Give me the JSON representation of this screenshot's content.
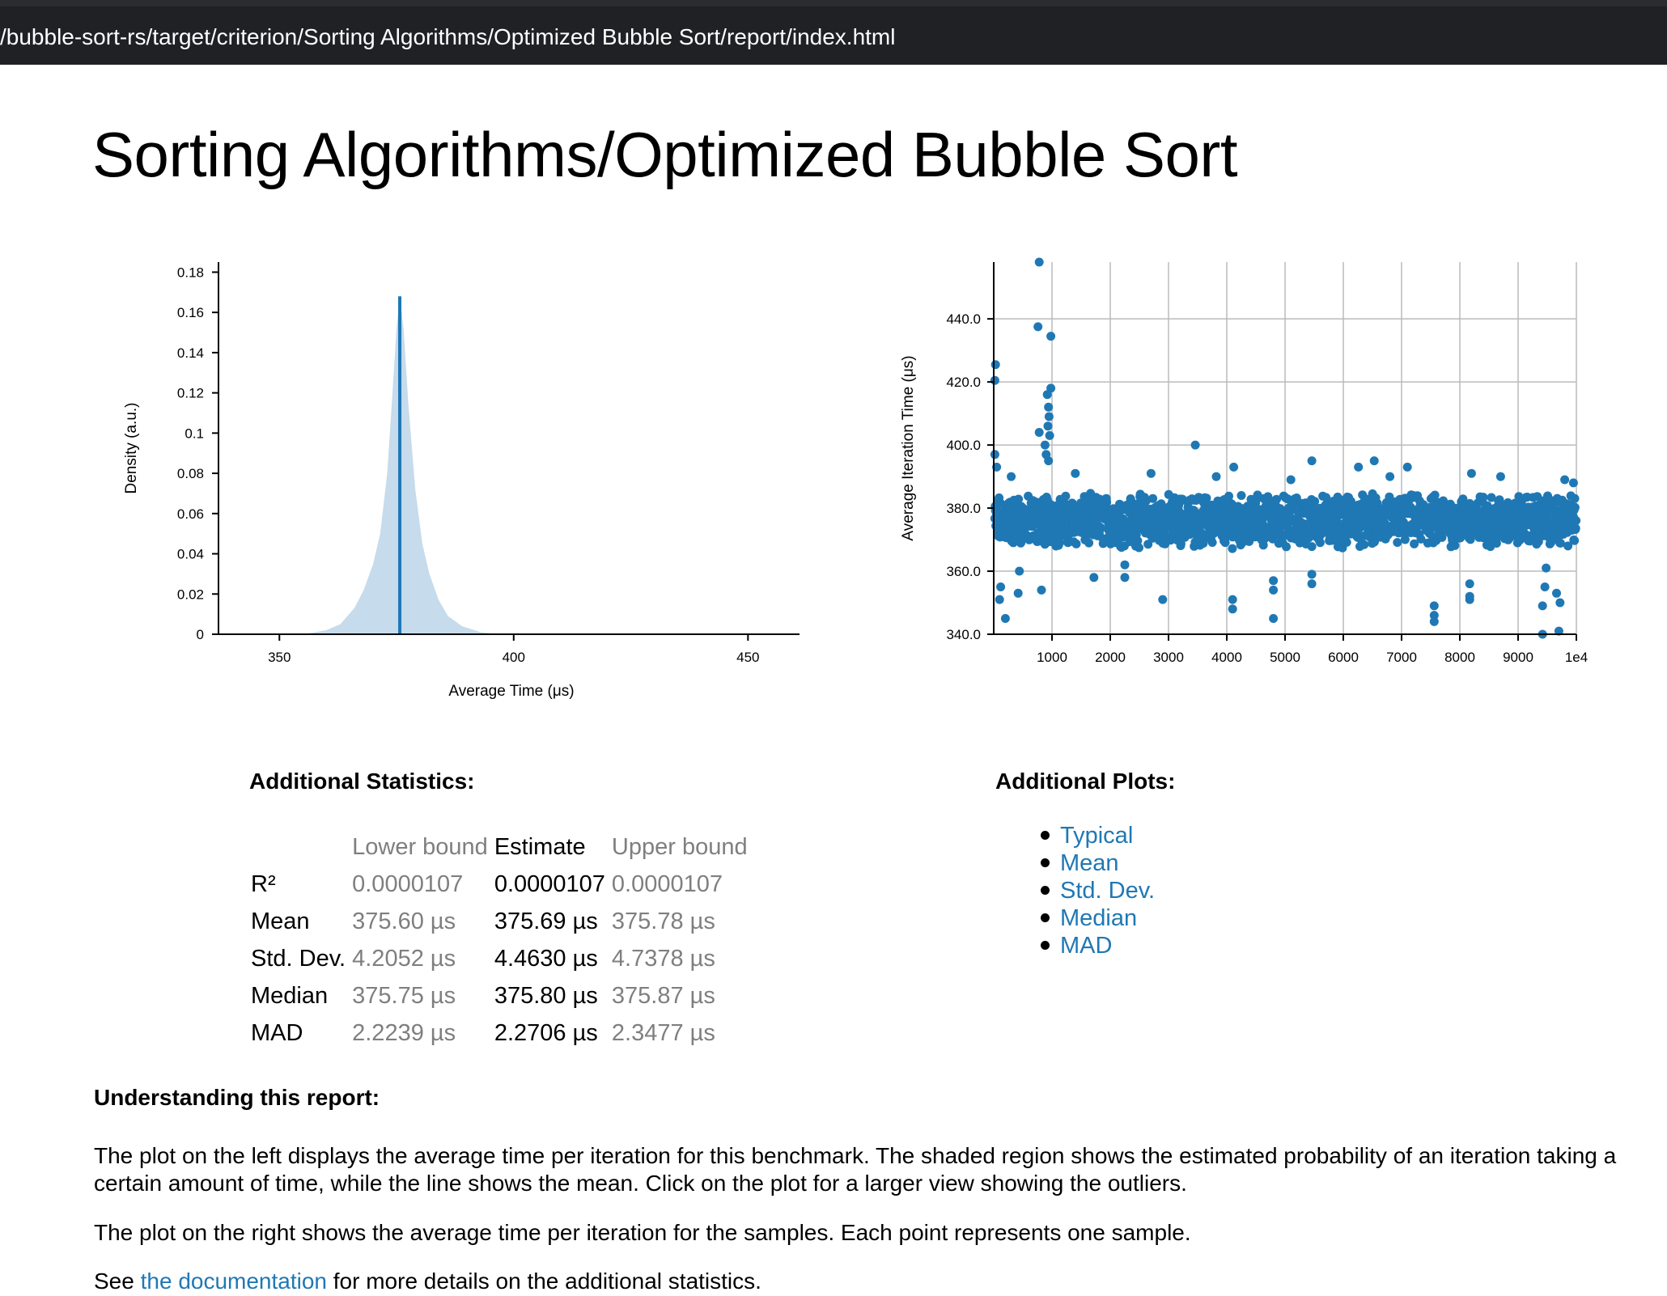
{
  "browser": {
    "url": "/bubble-sort-rs/target/criterion/Sorting Algorithms/Optimized Bubble Sort/report/index.html"
  },
  "page_title": "Sorting Algorithms/Optimized Bubble Sort",
  "chart_data": [
    {
      "type": "area",
      "xlabel": "Average Time (μs)",
      "ylabel": "Density (a.u.)",
      "xlim": [
        337,
        461
      ],
      "ylim": [
        0,
        0.185
      ],
      "x_ticks": [
        "350",
        "400",
        "450"
      ],
      "y_ticks": [
        "0",
        "0.02",
        "0.04",
        "0.06",
        "0.08",
        "0.1",
        "0.12",
        "0.14",
        "0.16",
        "0.18"
      ],
      "density": {
        "x": [
          355,
          360,
          363,
          366,
          368,
          370,
          371.5,
          373,
          374,
          375,
          375.69,
          376.5,
          377.5,
          379,
          380.5,
          382,
          384,
          386,
          389,
          393,
          397
        ],
        "y": [
          0,
          0.002,
          0.005,
          0.013,
          0.022,
          0.035,
          0.05,
          0.08,
          0.115,
          0.152,
          0.168,
          0.152,
          0.115,
          0.072,
          0.045,
          0.03,
          0.017,
          0.009,
          0.004,
          0.001,
          0
        ]
      },
      "mean_line": {
        "x": 375.69,
        "y": 0.168
      },
      "fill_color": "#c6dbeb",
      "line_color": "#1f78b4"
    },
    {
      "type": "scatter",
      "xlabel": "",
      "ylabel": "Average Iteration Time (μs)",
      "xlim": [
        0,
        10000
      ],
      "ylim": [
        340,
        458
      ],
      "x_ticks": [
        "1000",
        "2000",
        "3000",
        "4000",
        "5000",
        "6000",
        "7000",
        "8000",
        "9000",
        "1e4"
      ],
      "y_ticks": [
        "340.0",
        "360.0",
        "380.0",
        "400.0",
        "420.0",
        "440.0"
      ],
      "grid": true,
      "point_color": "#1f78b4",
      "outliers": [
        [
          780,
          458
        ],
        [
          760,
          437.5
        ],
        [
          980,
          434.5
        ],
        [
          30,
          425.5
        ],
        [
          20,
          420.5
        ],
        [
          980,
          418
        ],
        [
          920,
          416
        ],
        [
          940,
          412
        ],
        [
          950,
          409
        ],
        [
          930,
          406
        ],
        [
          960,
          403
        ],
        [
          780,
          404
        ],
        [
          880,
          400
        ],
        [
          900,
          397
        ],
        [
          940,
          395
        ],
        [
          20,
          397
        ],
        [
          50,
          393
        ],
        [
          3460,
          400
        ],
        [
          7100,
          393
        ],
        [
          5460,
          395
        ],
        [
          4120,
          393
        ],
        [
          6530,
          395
        ],
        [
          6260,
          393
        ],
        [
          300,
          390
        ],
        [
          1400,
          391
        ],
        [
          2700,
          391
        ],
        [
          3820,
          390
        ],
        [
          5100,
          389
        ],
        [
          6800,
          390
        ],
        [
          8200,
          391
        ],
        [
          8700,
          390
        ],
        [
          9800,
          389
        ],
        [
          9950,
          388
        ],
        [
          100,
          351
        ],
        [
          200,
          345
        ],
        [
          120,
          355
        ],
        [
          440,
          360
        ],
        [
          420,
          353
        ],
        [
          820,
          354
        ],
        [
          1720,
          358
        ],
        [
          2250,
          358
        ],
        [
          2250,
          362
        ],
        [
          2900,
          351
        ],
        [
          3650,
          371
        ],
        [
          4100,
          348
        ],
        [
          4100,
          351
        ],
        [
          4800,
          354
        ],
        [
          4800,
          357
        ],
        [
          4800,
          345
        ],
        [
          5460,
          356
        ],
        [
          5460,
          359
        ],
        [
          7560,
          349
        ],
        [
          7560,
          346
        ],
        [
          7560,
          344
        ],
        [
          8170,
          356
        ],
        [
          8170,
          352
        ],
        [
          8170,
          351
        ],
        [
          9420,
          340
        ],
        [
          9420,
          349
        ],
        [
          9460,
          355
        ],
        [
          9480,
          361
        ],
        [
          9700,
          341
        ],
        [
          9720,
          350
        ],
        [
          9660,
          353
        ]
      ]
    }
  ],
  "stats": {
    "heading": "Additional Statistics:",
    "columns": [
      "Lower bound",
      "Estimate",
      "Upper bound"
    ],
    "rows": [
      {
        "label": "R²",
        "lower": "0.0000107",
        "estimate": "0.0000107",
        "upper": "0.0000107"
      },
      {
        "label": "Mean",
        "lower": "375.60 µs",
        "estimate": "375.69 µs",
        "upper": "375.78 µs"
      },
      {
        "label": "Std. Dev.",
        "lower": "4.2052 µs",
        "estimate": "4.4630 µs",
        "upper": "4.7378 µs"
      },
      {
        "label": "Median",
        "lower": "375.75 µs",
        "estimate": "375.80 µs",
        "upper": "375.87 µs"
      },
      {
        "label": "MAD",
        "lower": "2.2239 µs",
        "estimate": "2.2706 µs",
        "upper": "2.3477 µs"
      }
    ]
  },
  "plots": {
    "heading": "Additional Plots:",
    "links": [
      "Typical",
      "Mean",
      "Std. Dev.",
      "Median",
      "MAD"
    ]
  },
  "understanding": {
    "heading": "Understanding this report:",
    "p1": "The plot on the left displays the average time per iteration for this benchmark. The shaded region shows the estimated probability of an iteration taking a certain amount of time, while the line shows the mean. Click on the plot for a larger view showing the outliers.",
    "p2": "The plot on the right shows the average time per iteration for the samples. Each point represents one sample.",
    "p3_before": "See ",
    "p3_link": "the documentation",
    "p3_after": " for more details on the additional statistics."
  },
  "colors": {
    "link": "#1f78b4",
    "muted": "#7f7f7f",
    "url_bar": "#202124"
  }
}
